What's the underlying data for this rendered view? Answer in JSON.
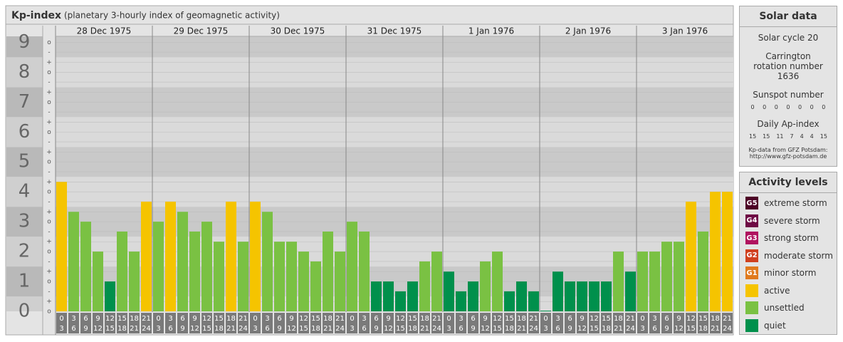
{
  "chart_data": {
    "type": "bar",
    "title": "Kp-index",
    "subtitle": "(planetary 3-hourly index of geomagnetic activity)",
    "ylim": [
      0,
      9.2
    ],
    "yticks": [
      0,
      1,
      2,
      3,
      4,
      5,
      6,
      7,
      8,
      9
    ],
    "minor_ticks": [
      {
        "value": 0,
        "label": "o"
      },
      {
        "value": 0.33,
        "label": "+"
      },
      {
        "value": 0.67,
        "label": "-"
      },
      {
        "value": 1,
        "label": "o"
      },
      {
        "value": 1.33,
        "label": "+"
      },
      {
        "value": 1.67,
        "label": "-"
      },
      {
        "value": 2,
        "label": "o"
      },
      {
        "value": 2.33,
        "label": "+"
      },
      {
        "value": 2.67,
        "label": "-"
      },
      {
        "value": 3,
        "label": "o"
      },
      {
        "value": 3.33,
        "label": "+"
      },
      {
        "value": 3.67,
        "label": "-"
      },
      {
        "value": 4,
        "label": "o"
      },
      {
        "value": 4.33,
        "label": "+"
      },
      {
        "value": 4.67,
        "label": "-"
      },
      {
        "value": 5,
        "label": "o"
      },
      {
        "value": 5.33,
        "label": "+"
      },
      {
        "value": 5.67,
        "label": "-"
      },
      {
        "value": 6,
        "label": "o"
      },
      {
        "value": 6.33,
        "label": "+"
      },
      {
        "value": 6.67,
        "label": "-"
      },
      {
        "value": 7,
        "label": "o"
      },
      {
        "value": 7.33,
        "label": "+"
      },
      {
        "value": 7.67,
        "label": "-"
      },
      {
        "value": 8,
        "label": "o"
      },
      {
        "value": 8.33,
        "label": "+"
      },
      {
        "value": 8.67,
        "label": "-"
      },
      {
        "value": 9,
        "label": "o"
      }
    ],
    "time_ticks": [
      [
        0,
        3
      ],
      [
        3,
        6
      ],
      [
        6,
        9
      ],
      [
        9,
        12
      ],
      [
        12,
        15
      ],
      [
        15,
        18
      ],
      [
        18,
        21
      ],
      [
        21,
        24
      ]
    ],
    "days": [
      {
        "label": "28 Dec 1975",
        "values": [
          4.33,
          3.33,
          3,
          2,
          1,
          2.67,
          2,
          3.67
        ],
        "colors": [
          "#f5c400",
          "#7ac143",
          "#7ac143",
          "#7ac143",
          "#00904c",
          "#7ac143",
          "#7ac143",
          "#f5c400"
        ]
      },
      {
        "label": "29 Dec 1975",
        "values": [
          3,
          3.67,
          3.33,
          2.67,
          3,
          2.33,
          3.67,
          2.33
        ],
        "colors": [
          "#7ac143",
          "#f5c400",
          "#7ac143",
          "#7ac143",
          "#7ac143",
          "#7ac143",
          "#f5c400",
          "#7ac143"
        ]
      },
      {
        "label": "30 Dec 1975",
        "values": [
          3.67,
          3.33,
          2.33,
          2.33,
          2,
          1.67,
          2.67,
          2
        ],
        "colors": [
          "#f5c400",
          "#7ac143",
          "#7ac143",
          "#7ac143",
          "#7ac143",
          "#7ac143",
          "#7ac143",
          "#7ac143"
        ]
      },
      {
        "label": "31 Dec 1975",
        "values": [
          3,
          2.67,
          1,
          1,
          0.67,
          1,
          1.67,
          2
        ],
        "colors": [
          "#7ac143",
          "#7ac143",
          "#00904c",
          "#00904c",
          "#00904c",
          "#00904c",
          "#7ac143",
          "#7ac143"
        ]
      },
      {
        "label": "1 Jan 1976",
        "values": [
          1.33,
          0.67,
          1,
          1.67,
          2,
          0.67,
          1,
          0.67
        ],
        "colors": [
          "#00904c",
          "#00904c",
          "#00904c",
          "#7ac143",
          "#7ac143",
          "#00904c",
          "#00904c",
          "#00904c"
        ]
      },
      {
        "label": "2 Jan 1976",
        "values": [
          0,
          1.33,
          1,
          1,
          1,
          1,
          2,
          1.33
        ],
        "colors": [
          "#00904c",
          "#00904c",
          "#00904c",
          "#00904c",
          "#00904c",
          "#00904c",
          "#7ac143",
          "#00904c"
        ]
      },
      {
        "label": "3 Jan 1976",
        "values": [
          2,
          2,
          2.33,
          2.33,
          3.67,
          2.67,
          4,
          4
        ],
        "colors": [
          "#7ac143",
          "#7ac143",
          "#7ac143",
          "#7ac143",
          "#f5c400",
          "#7ac143",
          "#f5c400",
          "#f5c400"
        ]
      }
    ]
  },
  "solar": {
    "title": "Solar data",
    "cycle": "Solar cycle 20",
    "carrington": "Carrington rotation number 1636",
    "sunspot_title": "Sunspot number",
    "sunspot": [
      0,
      0,
      0,
      0,
      0,
      0,
      0
    ],
    "ap_title": "Daily Ap-index",
    "ap": [
      15,
      15,
      11,
      7,
      4,
      4,
      15
    ],
    "credit": "Kp-data from GFZ Potsdam:",
    "url": "http://www.gfz-potsdam.de"
  },
  "activity": {
    "title": "Activity levels",
    "levels": [
      {
        "code": "G5",
        "name": "extreme storm",
        "color": "#4d0026"
      },
      {
        "code": "G4",
        "name": "severe storm",
        "color": "#6e0a44"
      },
      {
        "code": "G3",
        "name": "strong storm",
        "color": "#b0135f"
      },
      {
        "code": "G2",
        "name": "moderate storm",
        "color": "#d0401f"
      },
      {
        "code": "G1",
        "name": "minor storm",
        "color": "#e07a1e"
      },
      {
        "name": "active",
        "color": "#f5c400"
      },
      {
        "name": "unsettled",
        "color": "#7ac143"
      },
      {
        "name": "quiet",
        "color": "#00904c"
      }
    ]
  }
}
